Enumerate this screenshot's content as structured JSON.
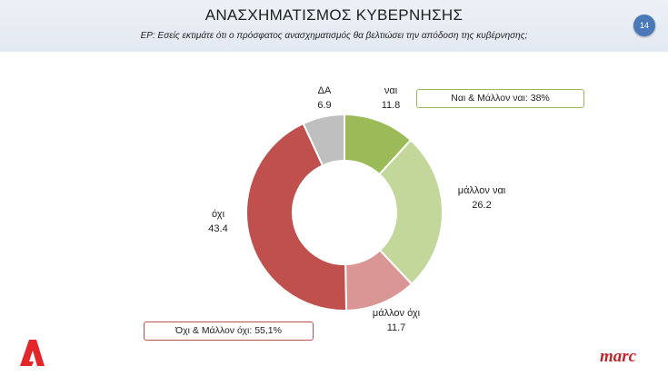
{
  "header": {
    "title": "ΑΝΑΣΧΗΜΑΤΙΣΜΟΣ ΚΥΒΕΡΝΗΣΗΣ",
    "subtitle": "ΕΡ: Εσείς εκτιμάτε ότι ο πρόσφατος ανασχηματισμός θα βελτιώσει την απόδοση της κυβέρνησης;",
    "page_number": "14"
  },
  "chart_data": {
    "type": "pie",
    "style": "donut",
    "categories": [
      "ναι",
      "μάλλον ναι",
      "μάλλον όχι",
      "όχι",
      "ΔΑ"
    ],
    "values": [
      11.8,
      26.2,
      11.7,
      43.4,
      6.9
    ],
    "colors": [
      "#9bbb59",
      "#c4d79b",
      "#da9694",
      "#c0504d",
      "#bfbfbf"
    ],
    "value_labels": [
      "11.8",
      "26.2",
      "11.7",
      "43.4",
      "6.9"
    ],
    "annotations": [
      {
        "text": "Ναι & Μάλλον ναι: 38%",
        "color": "#9bbb59"
      },
      {
        "text": "Όχι & Μάλλον όχι: 55,1%",
        "color": "#c0504d"
      }
    ]
  },
  "brand": {
    "logo_text": "marc",
    "logo_color": "#c0272d",
    "alpha_logo_color": "#e3262a"
  }
}
